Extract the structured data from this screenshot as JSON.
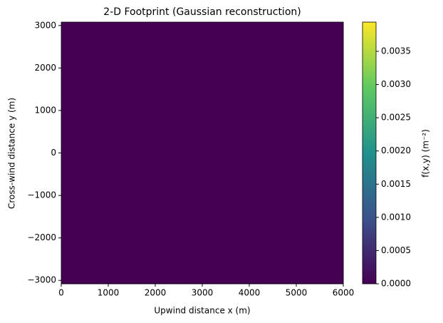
{
  "chart_data": {
    "type": "heatmap",
    "title": "2-D Footprint (Gaussian reconstruction)",
    "xlabel": "Upwind distance x (m)",
    "ylabel": "Cross-wind distance y (m)",
    "colorbar_label": "f(x,y) (m⁻²)",
    "values": [
      [
        0
      ]
    ],
    "xlim": [
      0,
      6000
    ],
    "xticks": [
      0,
      1000,
      2000,
      3000,
      4000,
      5000,
      6000
    ],
    "ylim": [
      -3080,
      3080
    ],
    "yticks": [
      {
        "value": -3000,
        "label": "−3000"
      },
      {
        "value": -2000,
        "label": "−2000"
      },
      {
        "value": -1000,
        "label": "−1000"
      },
      0,
      1000,
      2000,
      3000
    ],
    "clim": [
      0,
      0.00394
    ],
    "cticks": [
      {
        "value": 0,
        "label": "0.0000"
      },
      {
        "value": 0.0005,
        "label": "0.0005"
      },
      {
        "value": 0.001,
        "label": "0.0010"
      },
      {
        "value": 0.0015,
        "label": "0.0015"
      },
      {
        "value": 0.002,
        "label": "0.0020"
      },
      {
        "value": 0.0025,
        "label": "0.0025"
      },
      {
        "value": 0.003,
        "label": "0.0030"
      },
      {
        "value": 0.0035,
        "label": "0.0035"
      }
    ],
    "colormap": [
      "#440154",
      "#3b528b",
      "#21918c",
      "#5ec962",
      "#fde725"
    ]
  }
}
